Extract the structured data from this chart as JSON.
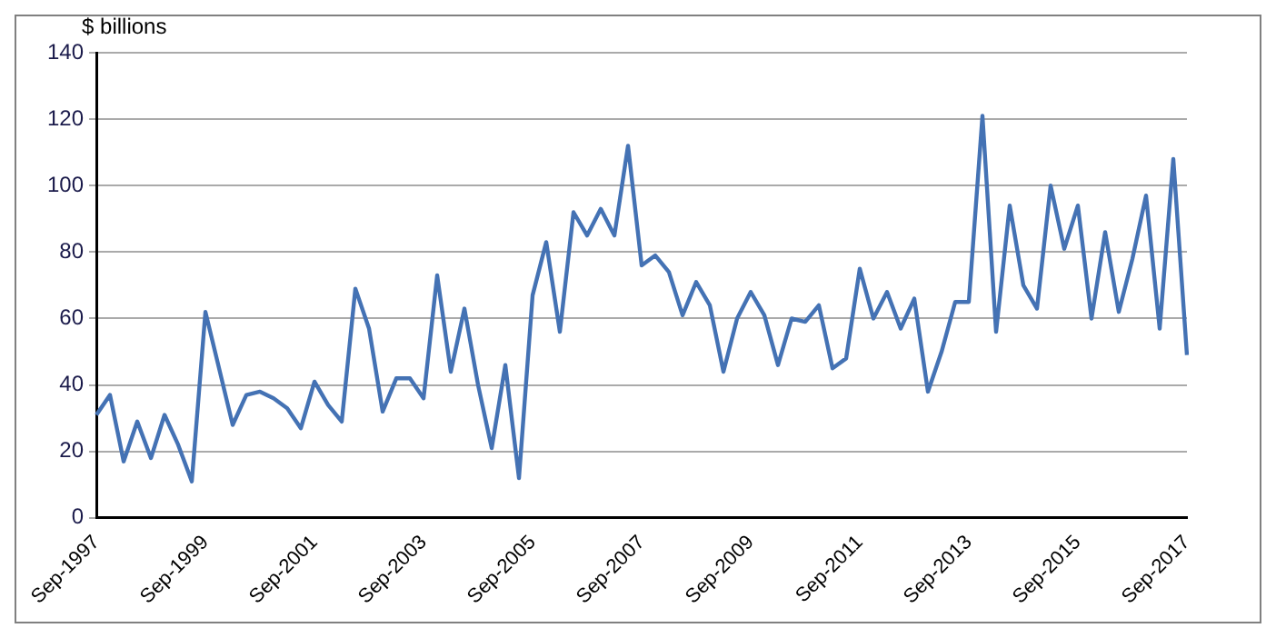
{
  "chart_data": {
    "type": "line",
    "ylabel": "$ billions",
    "categories": [
      "Sep-1997",
      null,
      null,
      null,
      null,
      null,
      null,
      null,
      "Sep-1999",
      null,
      null,
      null,
      null,
      null,
      null,
      null,
      "Sep-2001",
      null,
      null,
      null,
      null,
      null,
      null,
      null,
      "Sep-2003",
      null,
      null,
      null,
      null,
      null,
      null,
      null,
      "Sep-2005",
      null,
      null,
      null,
      null,
      null,
      null,
      null,
      "Sep-2007",
      null,
      null,
      null,
      null,
      null,
      null,
      null,
      "Sep-2009",
      null,
      null,
      null,
      null,
      null,
      null,
      null,
      "Sep-2011",
      null,
      null,
      null,
      null,
      null,
      null,
      null,
      "Sep-2013",
      null,
      null,
      null,
      null,
      null,
      null,
      null,
      "Sep-2015",
      null,
      null,
      null,
      null,
      null,
      null,
      null,
      "Sep-2017"
    ],
    "series": [
      {
        "color": "#4472b4",
        "values": [
          31,
          37,
          17,
          29,
          18,
          31,
          22,
          11,
          62,
          45,
          28,
          37,
          38,
          36,
          33,
          27,
          41,
          34,
          29,
          69,
          57,
          32,
          42,
          42,
          36,
          73,
          44,
          63,
          40,
          21,
          46,
          12,
          67,
          83,
          56,
          92,
          85,
          93,
          85,
          112,
          76,
          79,
          74,
          61,
          71,
          64,
          44,
          60,
          68,
          61,
          46,
          60,
          59,
          64,
          45,
          48,
          75,
          60,
          68,
          57,
          66,
          38,
          50,
          65,
          65,
          121,
          56,
          94,
          70,
          63,
          100,
          81,
          94,
          60,
          86,
          62,
          78,
          97,
          57,
          108,
          49
        ]
      }
    ],
    "ylim": [
      0,
      140
    ],
    "yticks": [
      0,
      20,
      40,
      60,
      80,
      100,
      120,
      140
    ],
    "grid": "y",
    "legend": false,
    "marker": "none",
    "line_style": "solid"
  }
}
